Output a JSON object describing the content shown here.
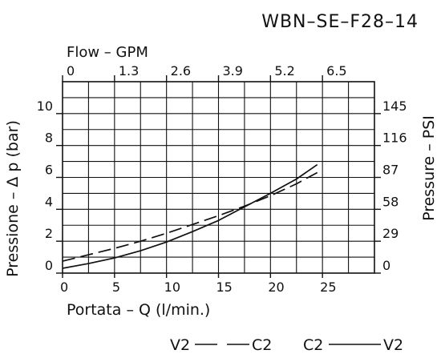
{
  "chart_data": {
    "type": "line",
    "title": "WBN–SE–F28–14",
    "x_top_label": "Flow  –  GPM",
    "x_top_ticks": [
      "0",
      "1.3",
      "2.6",
      "3.9",
      "5.2",
      "6.5"
    ],
    "xlabel": "Portata  –  Q  (l/min.)",
    "x_ticks": [
      "0",
      "5",
      "10",
      "15",
      "20",
      "25"
    ],
    "xlim": [
      0,
      30
    ],
    "ylabel": "Pressione  –  Δ p  (bar)",
    "y_ticks": [
      "0",
      "2",
      "4",
      "6",
      "8",
      "10"
    ],
    "ylim": [
      0,
      12
    ],
    "y_right_label": "Pressure  –  PSI",
    "y_right_ticks": [
      "0",
      "29",
      "58",
      "87",
      "116",
      "145"
    ],
    "grid": true,
    "series": [
      {
        "name": "C2 → V2",
        "style": "solid",
        "x": [
          0,
          2.5,
          5,
          7.5,
          10,
          12.5,
          15,
          17.5,
          20,
          22.5,
          24.5
        ],
        "y": [
          0.3,
          0.6,
          0.95,
          1.4,
          1.95,
          2.6,
          3.3,
          4.15,
          5.0,
          5.9,
          6.8
        ]
      },
      {
        "name": "V2 → C2",
        "style": "dashed",
        "x": [
          0,
          2.5,
          5,
          7.5,
          10,
          12.5,
          15,
          17.5,
          20,
          22.5,
          24.5
        ],
        "y": [
          0.75,
          1.15,
          1.55,
          2.0,
          2.5,
          3.05,
          3.6,
          4.2,
          4.85,
          5.6,
          6.3
        ]
      }
    ],
    "legend": {
      "placement": "bottom-right",
      "dashed": {
        "from": "V2",
        "to": "C2"
      },
      "solid": {
        "from": "C2",
        "to": "V2"
      }
    }
  }
}
